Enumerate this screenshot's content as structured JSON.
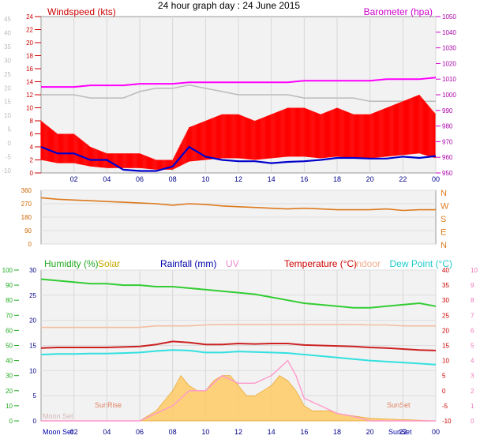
{
  "title": "24 hour graph day : 24 June 2015",
  "chart_data": [
    {
      "type": "line",
      "name": "wind-baro",
      "labels": {
        "left": "Windspeed (kts)",
        "right": "Barometer (hpa)"
      },
      "x_ticks": [
        "02",
        "04",
        "06",
        "08",
        "10",
        "12",
        "14",
        "16",
        "18",
        "20",
        "22",
        "00"
      ],
      "xlim": [
        0,
        24
      ],
      "outer_left_ticks": [
        "45",
        "40",
        "35",
        "30",
        "25",
        "20",
        "15",
        "10",
        "5",
        "0",
        "-5",
        "-10"
      ],
      "left_ticks": [
        "24",
        "22",
        "20",
        "18",
        "16",
        "14",
        "12",
        "10",
        "8",
        "6",
        "4",
        "2",
        "0"
      ],
      "left_ylim": [
        0,
        24
      ],
      "right_ticks": [
        "1050",
        "1040",
        "1030",
        "1020",
        "1010",
        "1000",
        "990",
        "980",
        "970",
        "960",
        "950"
      ],
      "right_ylim": [
        950,
        1050
      ],
      "colors": {
        "wind": "#ff0000",
        "avg": "#0000cc",
        "baro": "#ff00ff",
        "temp": "#bbbbbb"
      },
      "series": [
        {
          "x": [
            0,
            1,
            2,
            3,
            4,
            5,
            6,
            7,
            8,
            9,
            10,
            11,
            12,
            13,
            14,
            15,
            16,
            17,
            18,
            19,
            20,
            21,
            22,
            23,
            24
          ],
          "values": [
            1005,
            1005,
            1005,
            1006,
            1006,
            1006,
            1007,
            1007,
            1007,
            1008,
            1008,
            1008,
            1008,
            1008,
            1008,
            1008,
            1009,
            1009,
            1009,
            1009,
            1009,
            1010,
            1010,
            1010,
            1011
          ]
        },
        {
          "x": [
            0,
            1,
            2,
            3,
            4,
            5,
            6,
            7,
            8,
            9,
            10,
            11,
            12,
            13,
            14,
            15,
            16,
            17,
            18,
            19,
            20,
            21,
            22,
            23,
            24
          ],
          "values": [
            4,
            3,
            3,
            2,
            2,
            0.5,
            0.3,
            0.3,
            1,
            4,
            2.5,
            2,
            1.8,
            1.8,
            1.5,
            1.7,
            1.8,
            2,
            2.3,
            2.3,
            2.2,
            2.2,
            2.5,
            2.3,
            2.6
          ]
        },
        {
          "x": [
            0,
            1,
            2,
            3,
            4,
            5,
            6,
            7,
            8,
            9,
            10,
            11,
            12,
            13,
            14,
            15,
            16,
            17,
            18,
            19,
            20,
            21,
            22,
            23,
            24
          ],
          "values": [
            12,
            12,
            12,
            11.5,
            11.5,
            11.5,
            12.5,
            13,
            13,
            13.5,
            13,
            12.5,
            12,
            12,
            12,
            12,
            11.5,
            11.5,
            11.5,
            11.5,
            11,
            11,
            11,
            11,
            11
          ]
        },
        {
          "x": [
            0,
            1,
            2,
            3,
            4,
            5,
            6,
            7,
            8,
            9,
            10,
            11,
            12,
            13,
            14,
            15,
            16,
            17,
            18,
            19,
            20,
            21,
            22,
            23,
            24
          ],
          "values": [
            8,
            6,
            6,
            4,
            3,
            3,
            3,
            2,
            2,
            7,
            8,
            9,
            9,
            8,
            9,
            10,
            10,
            9,
            10,
            9,
            9,
            10,
            11,
            12,
            9
          ]
        }
      ]
    },
    {
      "type": "scatter",
      "name": "wind-direction",
      "x_ticks_left": [
        "360",
        "270",
        "180",
        "90",
        "0"
      ],
      "ylim": [
        0,
        360
      ],
      "compass": [
        "N",
        "W",
        "S",
        "E",
        "N"
      ],
      "color": "#dd7a1e",
      "x": [
        0,
        1,
        2,
        3,
        4,
        5,
        6,
        7,
        8,
        9,
        10,
        11,
        12,
        13,
        14,
        15,
        16,
        17,
        18,
        19,
        20,
        21,
        22,
        23,
        24
      ],
      "values": [
        310,
        300,
        295,
        290,
        285,
        280,
        275,
        270,
        260,
        270,
        265,
        255,
        250,
        245,
        240,
        235,
        240,
        235,
        230,
        230,
        230,
        235,
        225,
        230,
        230
      ]
    },
    {
      "type": "line",
      "name": "temp-humidity",
      "labels": {
        "humidity": "Humidity (%)",
        "solar": "Solar",
        "rainfall": "Rainfall (mm)",
        "uv": "UV",
        "temperature": "Temperature (°C)",
        "indoor": "Indoor",
        "dewpoint": "Dew Point (°C)"
      },
      "events": {
        "moonset": "Moon Set",
        "sunrise": "SunRise",
        "sunset": "SunSet"
      },
      "x_ticks": [
        "02",
        "04",
        "06",
        "08",
        "10",
        "12",
        "14",
        "16",
        "18",
        "20",
        "22",
        "00"
      ],
      "xlim": [
        0,
        24
      ],
      "hum_ticks": [
        "100",
        "90",
        "80",
        "70",
        "60",
        "50",
        "40",
        "30",
        "20",
        "10",
        "0"
      ],
      "hum_ylim": [
        0,
        100
      ],
      "rain_ticks": [
        "30",
        "25",
        "20",
        "15",
        "10",
        "5",
        "0"
      ],
      "rain_ylim": [
        0,
        30
      ],
      "temp_ticks": [
        "40",
        "35",
        "30",
        "25",
        "20",
        "15",
        "10",
        "5",
        "0",
        "-5",
        "-10"
      ],
      "temp_ylim": [
        -10,
        40
      ],
      "uv_ticks": [
        "10",
        "9",
        "8",
        "7",
        "6",
        "5",
        "4",
        "3",
        "2",
        "1",
        "0"
      ],
      "uv_ylim": [
        0,
        10
      ],
      "colors": {
        "humidity": "#33cc33",
        "solar": "#ffcc66",
        "temperature": "#cc2222",
        "indoor": "#f2bfa0",
        "dewpoint": "#33e0e0",
        "uv": "#ff99cc"
      },
      "series": [
        {
          "x": [
            0,
            1,
            2,
            3,
            4,
            5,
            6,
            7,
            8,
            9,
            10,
            11,
            12,
            13,
            14,
            15,
            16,
            17,
            18,
            19,
            20,
            21,
            22,
            23,
            24
          ],
          "values": [
            94,
            93,
            92,
            91,
            91,
            90,
            90,
            89,
            89,
            88,
            87,
            86,
            85,
            84,
            82,
            80,
            78,
            77,
            76,
            75,
            75,
            76,
            77,
            78,
            76
          ]
        },
        {
          "x": [
            0,
            1,
            2,
            3,
            4,
            5,
            6,
            7,
            8,
            9,
            10,
            11,
            12,
            13,
            14,
            15,
            16,
            17,
            18,
            19,
            20,
            21,
            22,
            23,
            24
          ],
          "values": [
            21,
            21,
            21,
            21,
            21,
            21,
            21,
            21.5,
            21.5,
            21.5,
            21.8,
            22,
            22,
            22,
            22,
            22,
            22,
            22,
            22,
            22,
            21.8,
            21.8,
            21.5,
            21.5,
            21.5
          ]
        },
        {
          "x": [
            0,
            1,
            2,
            3,
            4,
            5,
            6,
            7,
            8,
            9,
            10,
            11,
            12,
            13,
            14,
            15,
            16,
            17,
            18,
            19,
            20,
            21,
            22,
            23,
            24
          ],
          "values": [
            14.5,
            14.6,
            14.6,
            14.6,
            14.6,
            14.7,
            14.8,
            15.2,
            15.8,
            15.6,
            15.2,
            15.2,
            15.4,
            15.3,
            15.4,
            15.4,
            15.1,
            15.0,
            14.9,
            14.8,
            14.6,
            14.5,
            14.3,
            14.1,
            14.0
          ]
        },
        {
          "x": [
            0,
            1,
            2,
            3,
            4,
            5,
            6,
            7,
            8,
            9,
            10,
            11,
            12,
            13,
            14,
            15,
            16,
            17,
            18,
            19,
            20,
            21,
            22,
            23,
            24
          ],
          "values": [
            13.2,
            13.3,
            13.3,
            13.4,
            13.4,
            13.5,
            13.6,
            13.9,
            14.1,
            14.0,
            13.6,
            13.6,
            13.8,
            13.7,
            13.6,
            13.5,
            13.2,
            12.9,
            12.6,
            12.3,
            12.0,
            11.8,
            11.6,
            11.4,
            11.2
          ]
        },
        {
          "x": [
            0,
            6,
            6.5,
            7,
            7.5,
            8,
            8.5,
            9,
            9.5,
            10,
            10.5,
            11,
            11.5,
            12,
            12.5,
            13,
            13.5,
            14,
            14.5,
            15,
            15.5,
            16,
            16.5,
            17,
            17.5,
            18,
            19,
            20,
            24
          ],
          "values": [
            0,
            0,
            1,
            2,
            4,
            6,
            9,
            7,
            6,
            6,
            8,
            9,
            9,
            7,
            5,
            5,
            6,
            7,
            9,
            8,
            6,
            3,
            2,
            2,
            2,
            1.5,
            1,
            0.5,
            0
          ]
        },
        {
          "x": [
            0,
            6,
            8,
            9,
            10,
            11,
            12,
            13,
            14,
            15,
            15.5,
            16,
            17,
            18,
            19,
            20,
            24
          ],
          "values": [
            0,
            0,
            1,
            2,
            2,
            3,
            2.5,
            2.5,
            3,
            4,
            3,
            1.5,
            1,
            0.5,
            0.3,
            0,
            0
          ]
        }
      ]
    }
  ]
}
